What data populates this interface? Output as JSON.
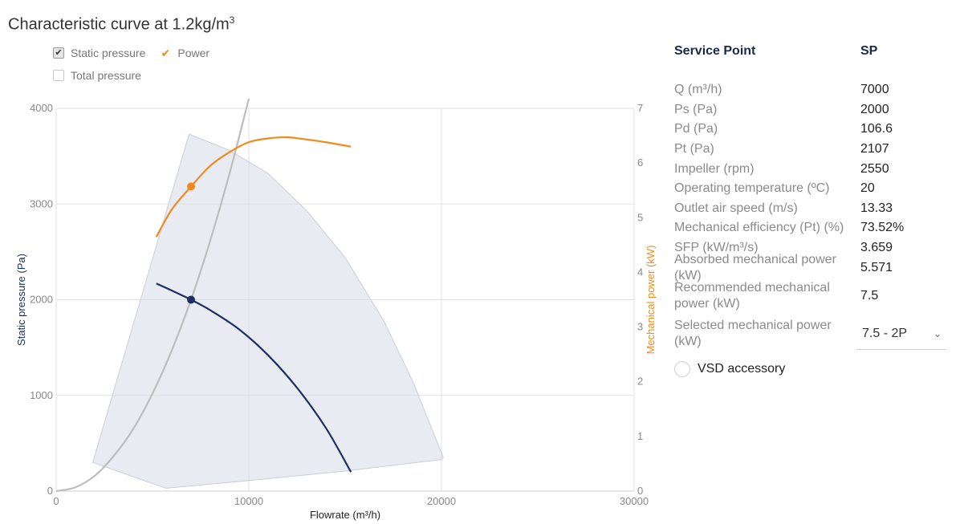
{
  "header": {
    "title": "Characteristic curve at 1.2kg/m",
    "title_sup": "3"
  },
  "legend": {
    "static_pressure": "Static pressure",
    "power": "Power",
    "total_pressure": "Total pressure"
  },
  "colors": {
    "static": "#1c2f63",
    "power": "#ef8b1e",
    "system": "#bdbdbd",
    "envelope": "#d8dee8"
  },
  "chart_data": {
    "type": "line",
    "title": "Characteristic curve at 1.2kg/m³",
    "xlabel": "Flowrate (m³/h)",
    "ylabel": "Static pressure (Pa)",
    "y2label": "Mechanical power (kW)",
    "xlim": [
      0,
      30000
    ],
    "ylim": [
      0,
      4000
    ],
    "y2lim": [
      0,
      7
    ],
    "x_ticks": [
      "0",
      "10000",
      "20000",
      "30000"
    ],
    "y_ticks": [
      "0",
      "1000",
      "2000",
      "3000",
      "4000"
    ],
    "y2_ticks": [
      "0",
      "1",
      "2",
      "3",
      "4",
      "5",
      "6",
      "7"
    ],
    "series": [
      {
        "name": "Static pressure",
        "axis": "left",
        "x": [
          5200,
          7000,
          8000,
          9500,
          11000,
          12500,
          14000,
          15300
        ],
        "y": [
          2170,
          2000,
          1890,
          1690,
          1420,
          1080,
          660,
          200
        ]
      },
      {
        "name": "Power",
        "axis": "right",
        "x": [
          5200,
          6000,
          7000,
          8000,
          9000,
          10000,
          11000,
          12000,
          13000,
          14000,
          15300
        ],
        "y": [
          4.65,
          5.15,
          5.57,
          5.95,
          6.2,
          6.38,
          6.45,
          6.47,
          6.43,
          6.38,
          6.3
        ]
      },
      {
        "name": "System curve",
        "axis": "left",
        "x": [
          0,
          1000,
          2000,
          3000,
          4000,
          5000,
          6000,
          7000,
          8000,
          9000,
          10000
        ],
        "y": [
          0,
          40,
          160,
          370,
          650,
          1020,
          1470,
          2000,
          2620,
          3320,
          4100
        ]
      }
    ],
    "envelope": {
      "x": [
        1900,
        6900,
        9000,
        11000,
        13000,
        15000,
        17000,
        18500,
        20100,
        20000,
        15000,
        10000,
        5700,
        4000,
        1900
      ],
      "y": [
        300,
        3730,
        3560,
        3320,
        2930,
        2440,
        1780,
        1150,
        350,
        330,
        210,
        110,
        30,
        150,
        300
      ]
    },
    "points": [
      {
        "series": "Static pressure",
        "x": 7000,
        "y": 2000
      },
      {
        "series": "Power",
        "x": 7000,
        "y": 5.571
      }
    ]
  },
  "panel": {
    "header_label": "Service Point",
    "header_value": "SP",
    "rows": [
      {
        "label": "Q (m³/h)",
        "value": "7000"
      },
      {
        "label": "Ps (Pa)",
        "value": "2000"
      },
      {
        "label": "Pd (Pa)",
        "value": "106.6"
      },
      {
        "label": "Pt (Pa)",
        "value": "2107"
      },
      {
        "label": "Impeller (rpm)",
        "value": "2550"
      },
      {
        "label": "Operating temperature (ºC)",
        "value": "20"
      },
      {
        "label": "Outlet air speed (m/s)",
        "value": "13.33"
      },
      {
        "label": "Mechanical efficiency (Pt) (%)",
        "value": "73.52%"
      },
      {
        "label": "SFP (kW/m³/s)",
        "value": "3.659"
      },
      {
        "label": "Absorbed mechanical power (kW)",
        "value": "5.571"
      },
      {
        "label": "Recommended mechanical power (kW)",
        "value": "7.5"
      }
    ],
    "selected_label": "Selected mechanical power (kW)",
    "selected_value": "7.5 - 2P",
    "vsd_label": "VSD accessory"
  }
}
